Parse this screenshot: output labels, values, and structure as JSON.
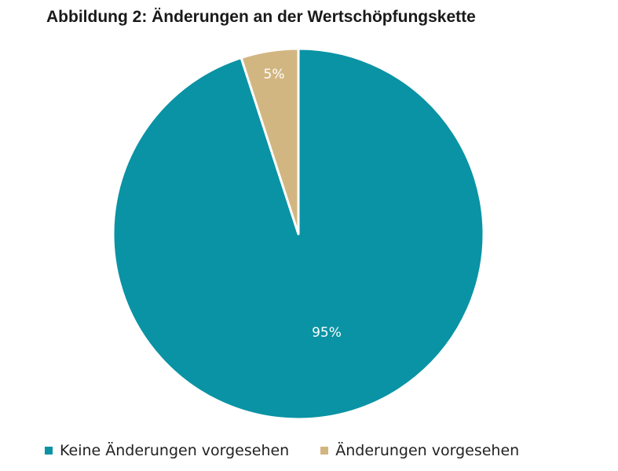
{
  "chart_data": {
    "type": "pie",
    "title": "Abbildung 2: Änderungen an der Wertschöpfungskette",
    "start_angle": "12 o'clock",
    "direction": "clockwise",
    "slices": [
      {
        "label": "Keine Änderungen vorgesehen",
        "value": 95,
        "value_label": "95%",
        "color": "#0a93a4"
      },
      {
        "label": "Änderungen vorgesehen",
        "value": 5,
        "value_label": "5%",
        "color": "#d2b682"
      }
    ],
    "legend": "bottom"
  }
}
